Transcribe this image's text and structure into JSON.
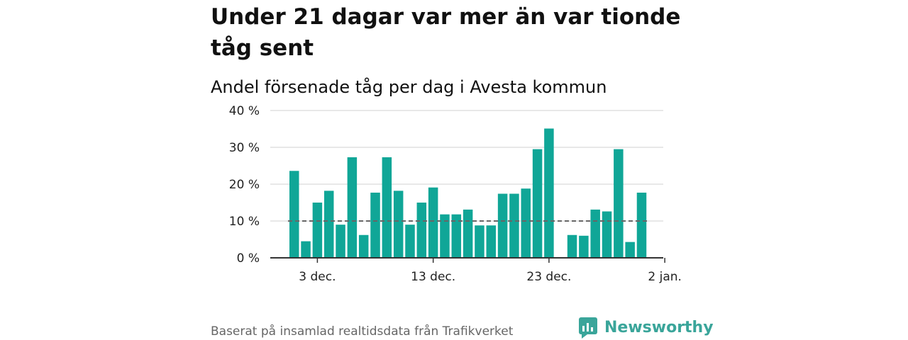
{
  "header": {
    "title": "Under 21 dagar var mer än var tionde tåg sent",
    "subtitle": "Andel försenade tåg per dag i Avesta kommun"
  },
  "footer": {
    "source": "Baserat på insamlad realtidsdata från Trafikverket",
    "brand": "Newsworthy"
  },
  "colors": {
    "bar": "#10a697",
    "grid": "#e0e0e0",
    "axis": "#333333",
    "reference_line": "#666666",
    "brand": "#3aa59a"
  },
  "icons": {
    "brand_logo": "newsworthy-logo-icon"
  },
  "chart_data": {
    "type": "bar",
    "title": "Andel försenade tåg per dag i Avesta kommun",
    "xlabel": "",
    "ylabel": "",
    "x_start_label": "1 dec.",
    "categories": [
      "1 dec.",
      "2 dec.",
      "3 dec.",
      "4 dec.",
      "5 dec.",
      "6 dec.",
      "7 dec.",
      "8 dec.",
      "9 dec.",
      "10 dec.",
      "11 dec.",
      "12 dec.",
      "13 dec.",
      "14 dec.",
      "15 dec.",
      "16 dec.",
      "17 dec.",
      "18 dec.",
      "19 dec.",
      "20 dec.",
      "21 dec.",
      "22 dec.",
      "23 dec.",
      "24 dec.",
      "25 dec.",
      "26 dec.",
      "27 dec.",
      "28 dec.",
      "29 dec.",
      "30 dec.",
      "31 dec.",
      "1 jan."
    ],
    "values": [
      23.6,
      4.5,
      15.0,
      18.2,
      9.0,
      27.3,
      6.2,
      17.7,
      27.3,
      18.2,
      9.0,
      15.0,
      19.1,
      11.8,
      11.8,
      13.1,
      8.8,
      8.8,
      17.4,
      17.4,
      18.8,
      29.5,
      35.1,
      null,
      6.2,
      6.0,
      13.1,
      12.6,
      29.5,
      4.3,
      17.7,
      null
    ],
    "reference_line": 10,
    "ylim": [
      0,
      40
    ],
    "y_ticks": [
      0,
      10,
      20,
      30,
      40
    ],
    "y_tick_labels": [
      "0 %",
      "10 %",
      "20 %",
      "30 %",
      "40 %"
    ],
    "x_ticks": [
      {
        "index": 2,
        "label": "3 dec."
      },
      {
        "index": 12,
        "label": "13 dec."
      },
      {
        "index": 22,
        "label": "23 dec."
      },
      {
        "index": 32,
        "label": "2 jan."
      }
    ],
    "grid": true,
    "legend": "none"
  }
}
